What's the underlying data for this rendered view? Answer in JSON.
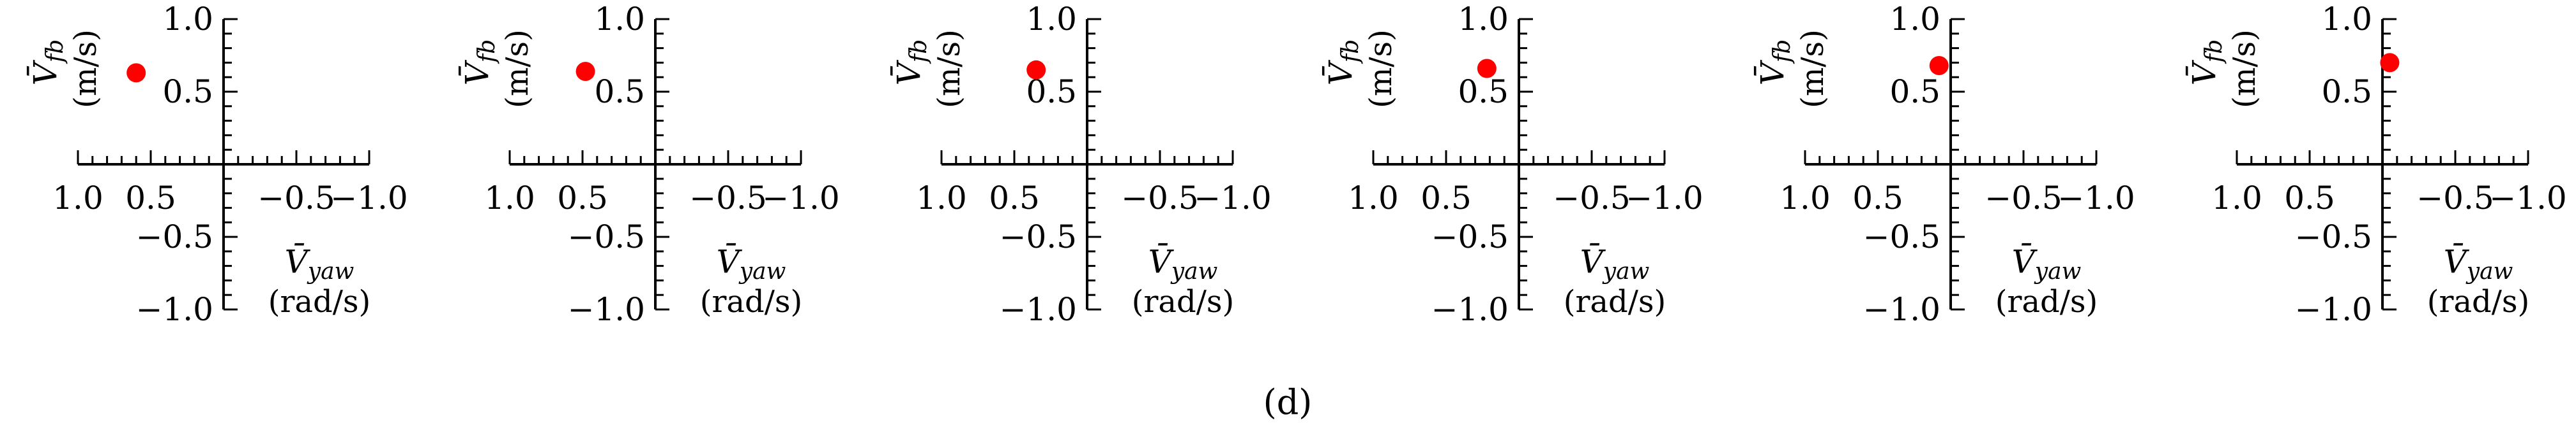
{
  "caption": "(d)",
  "chart_data": [
    {
      "type": "scatter",
      "x_var": "V̄",
      "x_sub": "yaw",
      "x_unit": "(rad/s)",
      "y_var": "V̄",
      "y_sub": "fb",
      "y_unit": "(m/s)",
      "xlim": [
        1.0,
        -1.0
      ],
      "ylim": [
        -1.0,
        1.0
      ],
      "xticks": [
        "1.0",
        "0.5",
        "−0.5",
        "−1.0"
      ],
      "yticks": [
        "1.0",
        "0.5",
        "−0.5",
        "−1.0"
      ],
      "points": [
        {
          "x": 0.6,
          "y": 0.63
        }
      ],
      "point_color": "#ff0000"
    },
    {
      "type": "scatter",
      "x_var": "V̄",
      "x_sub": "yaw",
      "x_unit": "(rad/s)",
      "y_var": "V̄",
      "y_sub": "fb",
      "y_unit": "(m/s)",
      "xlim": [
        1.0,
        -1.0
      ],
      "ylim": [
        -1.0,
        1.0
      ],
      "xticks": [
        "1.0",
        "0.5",
        "−0.5",
        "−1.0"
      ],
      "yticks": [
        "1.0",
        "0.5",
        "−0.5",
        "−1.0"
      ],
      "points": [
        {
          "x": 0.48,
          "y": 0.64
        }
      ],
      "point_color": "#ff0000"
    },
    {
      "type": "scatter",
      "x_var": "V̄",
      "x_sub": "yaw",
      "x_unit": "(rad/s)",
      "y_var": "V̄",
      "y_sub": "fb",
      "y_unit": "(m/s)",
      "xlim": [
        1.0,
        -1.0
      ],
      "ylim": [
        -1.0,
        1.0
      ],
      "xticks": [
        "1.0",
        "0.5",
        "−0.5",
        "−1.0"
      ],
      "yticks": [
        "1.0",
        "0.5",
        "−0.5",
        "−1.0"
      ],
      "points": [
        {
          "x": 0.35,
          "y": 0.65
        }
      ],
      "point_color": "#ff0000"
    },
    {
      "type": "scatter",
      "x_var": "V̄",
      "x_sub": "yaw",
      "x_unit": "(rad/s)",
      "y_var": "V̄",
      "y_sub": "fb",
      "y_unit": "(m/s)",
      "xlim": [
        1.0,
        -1.0
      ],
      "ylim": [
        -1.0,
        1.0
      ],
      "xticks": [
        "1.0",
        "0.5",
        "−0.5",
        "−1.0"
      ],
      "yticks": [
        "1.0",
        "0.5",
        "−0.5",
        "−1.0"
      ],
      "points": [
        {
          "x": 0.22,
          "y": 0.66
        }
      ],
      "point_color": "#ff0000"
    },
    {
      "type": "scatter",
      "x_var": "V̄",
      "x_sub": "yaw",
      "x_unit": "(rad/s)",
      "y_var": "V̄",
      "y_sub": "fb",
      "y_unit": "(m/s)",
      "xlim": [
        1.0,
        -1.0
      ],
      "ylim": [
        -1.0,
        1.0
      ],
      "xticks": [
        "1.0",
        "0.5",
        "−0.5",
        "−1.0"
      ],
      "yticks": [
        "1.0",
        "0.5",
        "−0.5",
        "−1.0"
      ],
      "points": [
        {
          "x": 0.08,
          "y": 0.68
        }
      ],
      "point_color": "#ff0000"
    },
    {
      "type": "scatter",
      "x_var": "V̄",
      "x_sub": "yaw",
      "x_unit": "(rad/s)",
      "y_var": "V̄",
      "y_sub": "fb",
      "y_unit": "(m/s)",
      "xlim": [
        1.0,
        -1.0
      ],
      "ylim": [
        -1.0,
        1.0
      ],
      "xticks": [
        "1.0",
        "0.5",
        "−0.5",
        "−1.0"
      ],
      "yticks": [
        "1.0",
        "0.5",
        "−0.5",
        "−1.0"
      ],
      "points": [
        {
          "x": -0.05,
          "y": 0.7
        }
      ],
      "point_color": "#ff0000"
    }
  ]
}
